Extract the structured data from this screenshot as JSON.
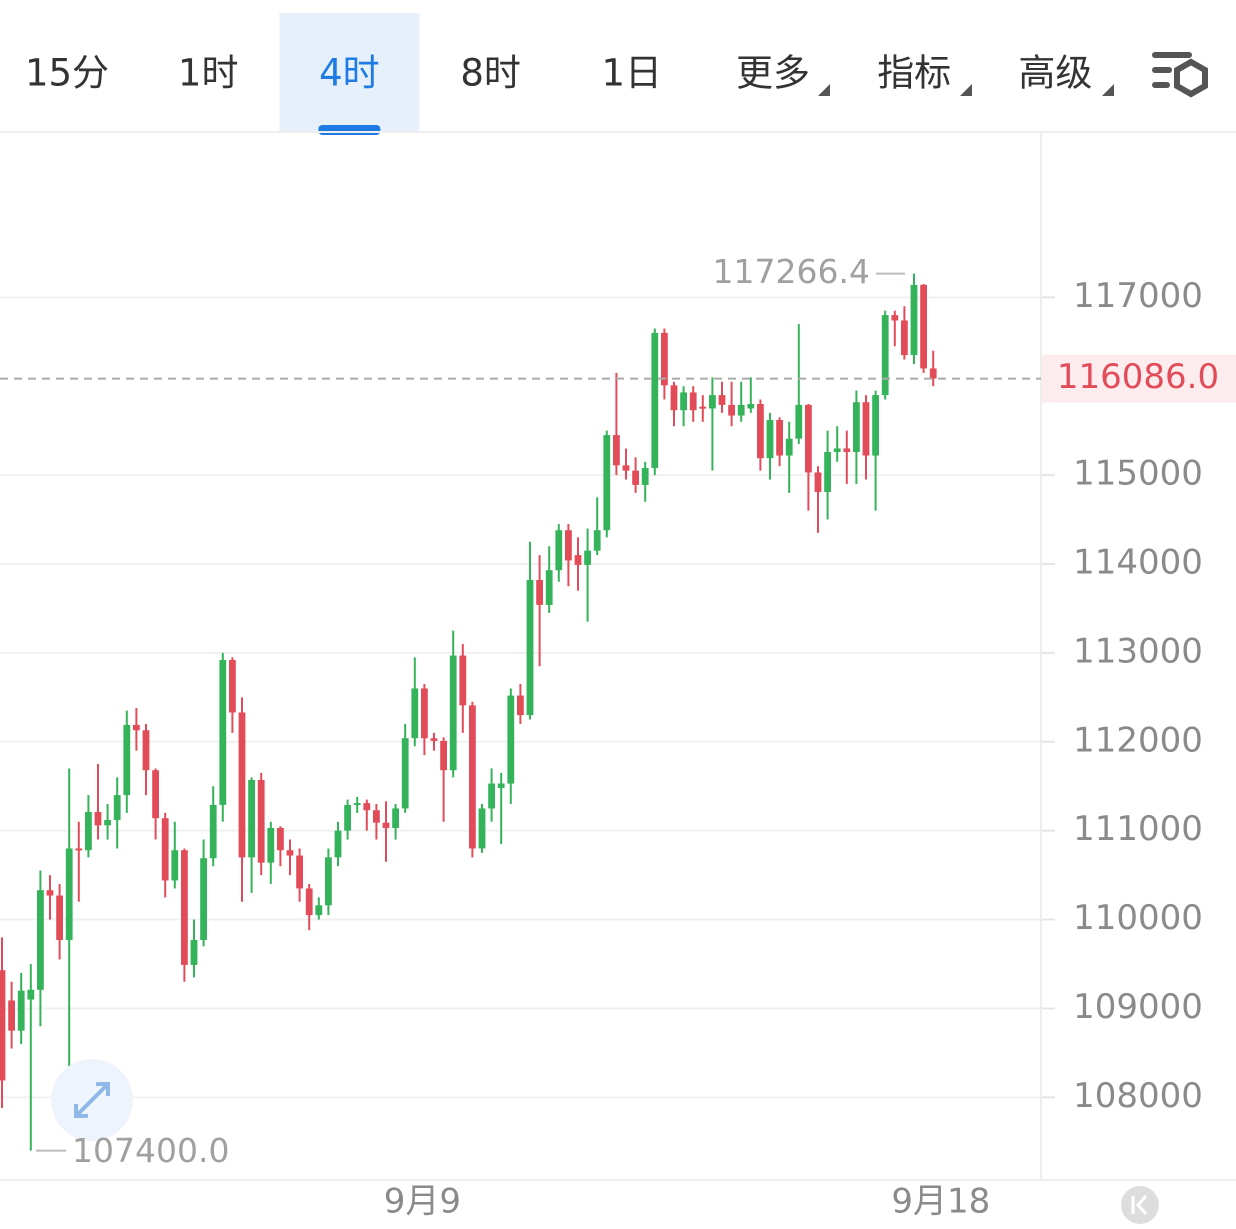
{
  "tabs": {
    "items": [
      "15分",
      "1时",
      "4时",
      "8时",
      "1日",
      "更多",
      "指标",
      "高级"
    ],
    "active": 2
  },
  "chart_data": {
    "type": "candlestick",
    "categories": [
      null,
      null,
      null,
      null,
      null,
      null,
      null,
      null,
      null,
      null,
      null,
      null,
      null,
      null,
      null,
      null,
      null,
      null,
      null,
      null,
      null,
      null,
      null,
      null,
      null,
      null,
      null,
      null,
      null,
      null,
      null,
      null,
      null,
      null,
      null,
      null,
      null,
      null,
      null,
      null,
      null,
      null,
      null,
      null,
      "9月9",
      null,
      null,
      null,
      null,
      null,
      null,
      null,
      null,
      null,
      null,
      null,
      null,
      null,
      null,
      null,
      null,
      null,
      null,
      null,
      null,
      null,
      null,
      null,
      null,
      null,
      null,
      null,
      null,
      null,
      null,
      null,
      null,
      null,
      null,
      null,
      null,
      null,
      null,
      null,
      null,
      null,
      null,
      null,
      null,
      null,
      null,
      null,
      null,
      null,
      null,
      null,
      null,
      null,
      "9月18"
    ],
    "open": [
      109430,
      109090,
      108750,
      109100,
      109210,
      110330,
      110270,
      109770,
      110800,
      110780,
      111210,
      111060,
      111120,
      111400,
      112190,
      112130,
      111680,
      111140,
      110440,
      110780,
      109490,
      109770,
      110690,
      111290,
      112920,
      112330,
      110700,
      111570,
      110640,
      111030,
      110780,
      110720,
      110350,
      110050,
      110160,
      110700,
      111000,
      111290,
      111310,
      111230,
      111090,
      111030,
      111250,
      112040,
      112600,
      112040,
      112010,
      111680,
      112970,
      112410,
      110800,
      111250,
      111480,
      111530,
      112520,
      112300,
      113820,
      113540,
      113930,
      114380,
      114100,
      113990,
      114150,
      114380,
      115450,
      115110,
      115050,
      114890,
      115080,
      116600,
      116010,
      115730,
      115930,
      115770,
      115750,
      115900,
      115790,
      115670,
      115750,
      115800,
      115190,
      115620,
      115220,
      115410,
      115790,
      115030,
      114810,
      115260,
      115300,
      115260,
      115820,
      115220,
      115900,
      116800,
      116740,
      116350,
      117140,
      116200,
      null
    ],
    "high": [
      109800,
      109300,
      109400,
      109500,
      110550,
      110500,
      110400,
      111700,
      111100,
      111400,
      111750,
      111300,
      111600,
      112350,
      112380,
      112200,
      111700,
      111200,
      111100,
      110800,
      110000,
      110900,
      111500,
      113000,
      112950,
      112500,
      111600,
      111650,
      111100,
      111050,
      110900,
      110800,
      110400,
      110250,
      110800,
      111100,
      111350,
      111380,
      111350,
      111300,
      111330,
      111300,
      112200,
      112950,
      112650,
      112100,
      112050,
      113250,
      113100,
      112450,
      111300,
      111700,
      111650,
      112600,
      112650,
      114250,
      114100,
      114200,
      114450,
      114450,
      114300,
      114400,
      114750,
      115500,
      116150,
      115300,
      115200,
      115150,
      116650,
      116650,
      116050,
      116000,
      116000,
      115900,
      116100,
      116050,
      116050,
      116050,
      116100,
      115850,
      115700,
      115650,
      115600,
      116700,
      115800,
      115100,
      115500,
      115550,
      115500,
      115950,
      115900,
      115950,
      116850,
      116850,
      116900,
      117266.4,
      117150,
      116400,
      null
    ],
    "low": [
      107880,
      108550,
      108600,
      107400,
      108800,
      110000,
      109550,
      108350,
      110200,
      110700,
      110900,
      110900,
      110800,
      111200,
      111900,
      111400,
      110900,
      110250,
      110350,
      109300,
      109350,
      109700,
      110600,
      111100,
      112100,
      110200,
      110300,
      110500,
      110400,
      110600,
      110500,
      110200,
      109880,
      110000,
      110050,
      110600,
      110900,
      111200,
      111000,
      110900,
      110650,
      110900,
      111200,
      111950,
      111850,
      111900,
      111100,
      111600,
      112100,
      110700,
      110750,
      111100,
      110850,
      111300,
      112200,
      112250,
      112850,
      113450,
      113800,
      113750,
      113700,
      113350,
      114100,
      114300,
      115000,
      114950,
      114800,
      114700,
      115000,
      115850,
      115550,
      115550,
      115600,
      115600,
      115050,
      115700,
      115550,
      115600,
      115700,
      115050,
      114950,
      115100,
      114800,
      115350,
      114600,
      114350,
      114500,
      115150,
      114900,
      114900,
      114950,
      114600,
      115850,
      116450,
      116300,
      116250,
      116150,
      116000,
      null
    ],
    "close": [
      108190,
      108750,
      109200,
      109210,
      110330,
      110270,
      109770,
      110800,
      110780,
      111210,
      111060,
      111120,
      111400,
      112190,
      112130,
      111680,
      111140,
      110440,
      110780,
      109490,
      109770,
      110690,
      111290,
      112920,
      112330,
      110700,
      111570,
      110640,
      111030,
      110780,
      110720,
      110350,
      110050,
      110160,
      110700,
      111000,
      111290,
      111310,
      111230,
      111090,
      111030,
      111250,
      112040,
      112600,
      112040,
      112010,
      111680,
      112970,
      112410,
      110800,
      111250,
      111530,
      111530,
      112520,
      112300,
      113820,
      113540,
      113930,
      114380,
      114040,
      113990,
      114150,
      114380,
      115450,
      115110,
      115050,
      114890,
      115080,
      116600,
      116010,
      115730,
      115930,
      115730,
      115750,
      115900,
      115790,
      115670,
      115790,
      115800,
      115190,
      115620,
      115220,
      115410,
      115790,
      115030,
      114810,
      115260,
      115300,
      115260,
      115820,
      115220,
      115900,
      116800,
      116740,
      116350,
      117140,
      116200,
      116086,
      null
    ],
    "up_color": "#34b35a",
    "down_color": "#e24c59",
    "ylim": [
      107070,
      118860
    ],
    "yticks": [
      108000,
      109000,
      110000,
      111000,
      112000,
      113000,
      114000,
      115000,
      117000
    ],
    "grid": true,
    "max_annotation": {
      "value": 117266.4,
      "label": "117266.4"
    },
    "min_annotation": {
      "value": 107400,
      "label": "107400.0"
    },
    "last_price": {
      "value": 116086,
      "label": "116086.0"
    }
  }
}
